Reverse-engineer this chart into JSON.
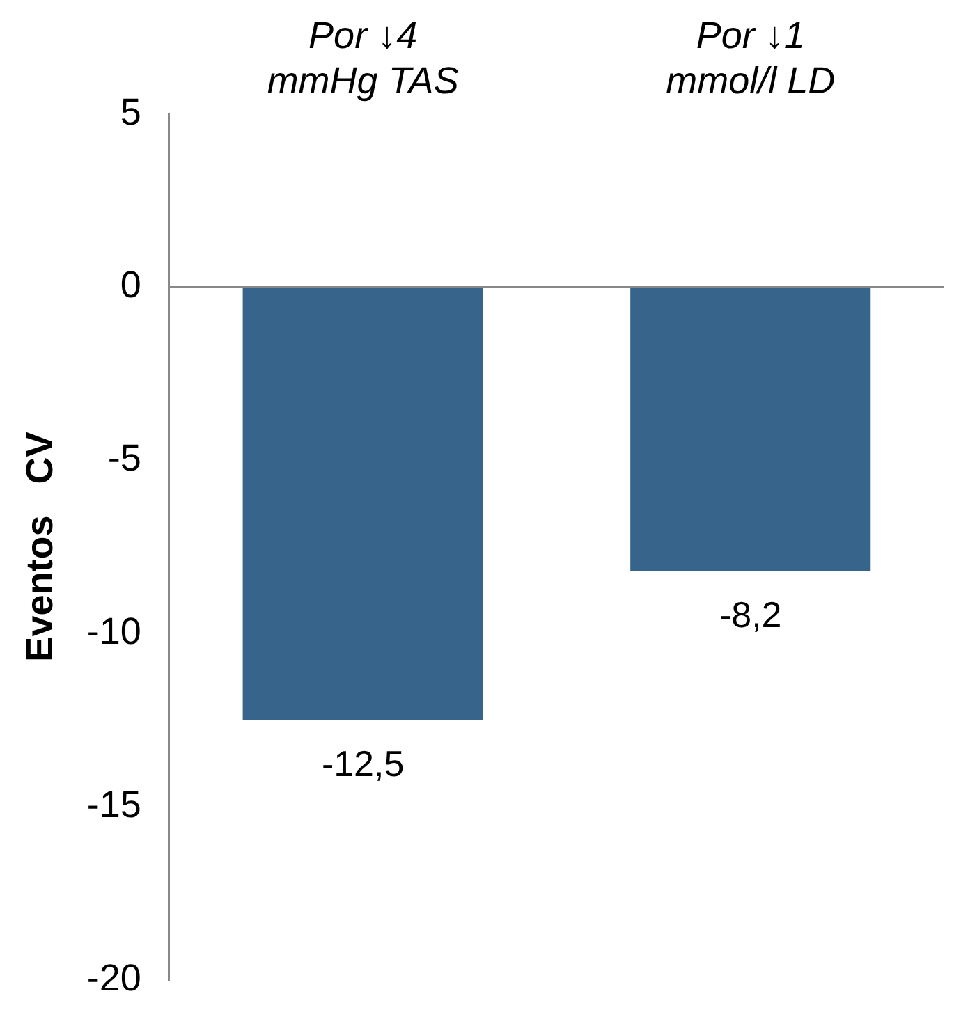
{
  "chart_data": {
    "type": "bar",
    "ylabel": "Eventos   CV",
    "categories": [
      "Por ↓4 mmHg TAS",
      "Por ↓1 mmol/l LD"
    ],
    "values": [
      -12.5,
      -8.2
    ],
    "value_labels": [
      "-12,5",
      "-8,2"
    ],
    "color": "#36648b",
    "ylim": [
      -20,
      5
    ],
    "yticks": [
      -20,
      -15,
      -10,
      -5,
      0,
      5
    ],
    "grid": false,
    "legend": false,
    "ref_lines": [
      {
        "axis": "y",
        "value": 0,
        "color": "#888888"
      }
    ]
  }
}
